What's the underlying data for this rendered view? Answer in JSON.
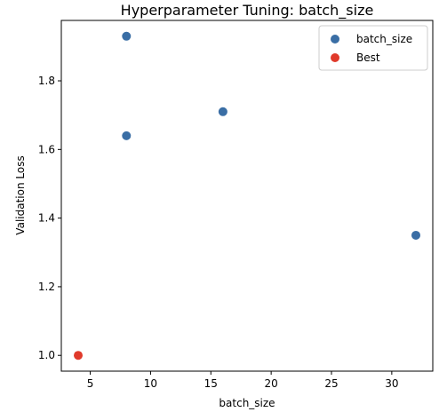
{
  "chart_data": {
    "type": "scatter",
    "title": "Hyperparameter Tuning: batch_size",
    "xlabel": "batch_size",
    "ylabel": "Validation Loss",
    "xlim": [
      2.6,
      33.4
    ],
    "ylim": [
      0.954,
      1.976
    ],
    "x_ticks": [
      5,
      10,
      15,
      20,
      25,
      30
    ],
    "y_ticks": [
      1.0,
      1.2,
      1.4,
      1.6,
      1.8
    ],
    "grid": false,
    "legend_placement": "top-right",
    "series": [
      {
        "name": "batch_size",
        "color": "#3a6ea5",
        "points": [
          {
            "x": 8,
            "y": 1.93
          },
          {
            "x": 8,
            "y": 1.64
          },
          {
            "x": 16,
            "y": 1.71
          },
          {
            "x": 32,
            "y": 1.35
          }
        ]
      },
      {
        "name": "Best",
        "color": "#e03a2b",
        "points": [
          {
            "x": 4,
            "y": 1.0
          }
        ]
      }
    ]
  }
}
